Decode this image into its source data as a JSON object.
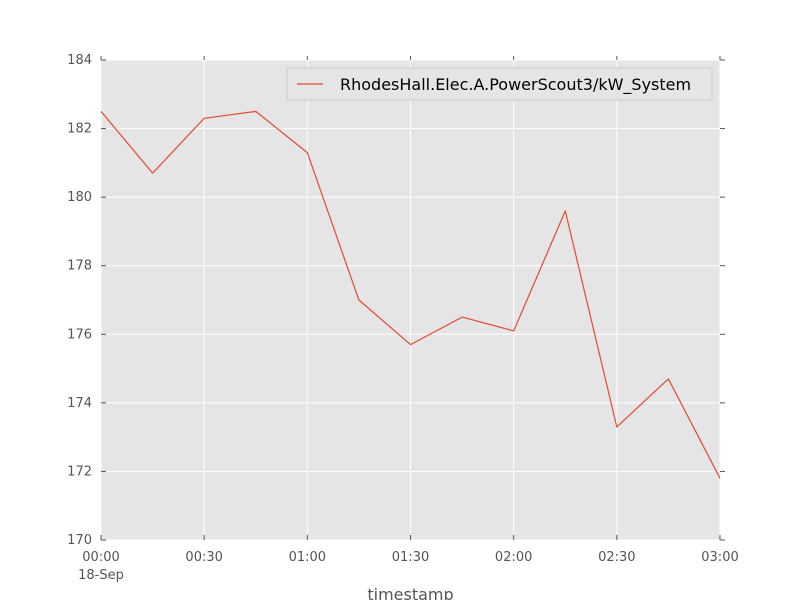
{
  "chart_data": {
    "type": "line",
    "title": "",
    "xlabel": "timestamp",
    "ylabel": "",
    "x": [
      "00:00",
      "00:15",
      "00:30",
      "00:45",
      "01:00",
      "01:15",
      "01:30",
      "01:45",
      "02:00",
      "02:15",
      "02:30",
      "02:45",
      "03:00"
    ],
    "x_ticks": [
      "00:00",
      "00:30",
      "01:00",
      "01:30",
      "02:00",
      "02:30",
      "03:00"
    ],
    "x_tick_sublabel": "18-Sep",
    "y_ticks": [
      170,
      172,
      174,
      176,
      178,
      180,
      182,
      184
    ],
    "ylim": [
      170,
      184
    ],
    "grid": true,
    "legend_position": "top-right",
    "series": [
      {
        "name": "RhodesHall.Elec.A.PowerScout3/kW_System",
        "color": "#e24a33",
        "values": [
          182.5,
          180.7,
          182.3,
          182.5,
          181.3,
          177.0,
          175.7,
          176.5,
          176.1,
          179.6,
          173.3,
          174.7,
          171.8
        ]
      }
    ]
  }
}
